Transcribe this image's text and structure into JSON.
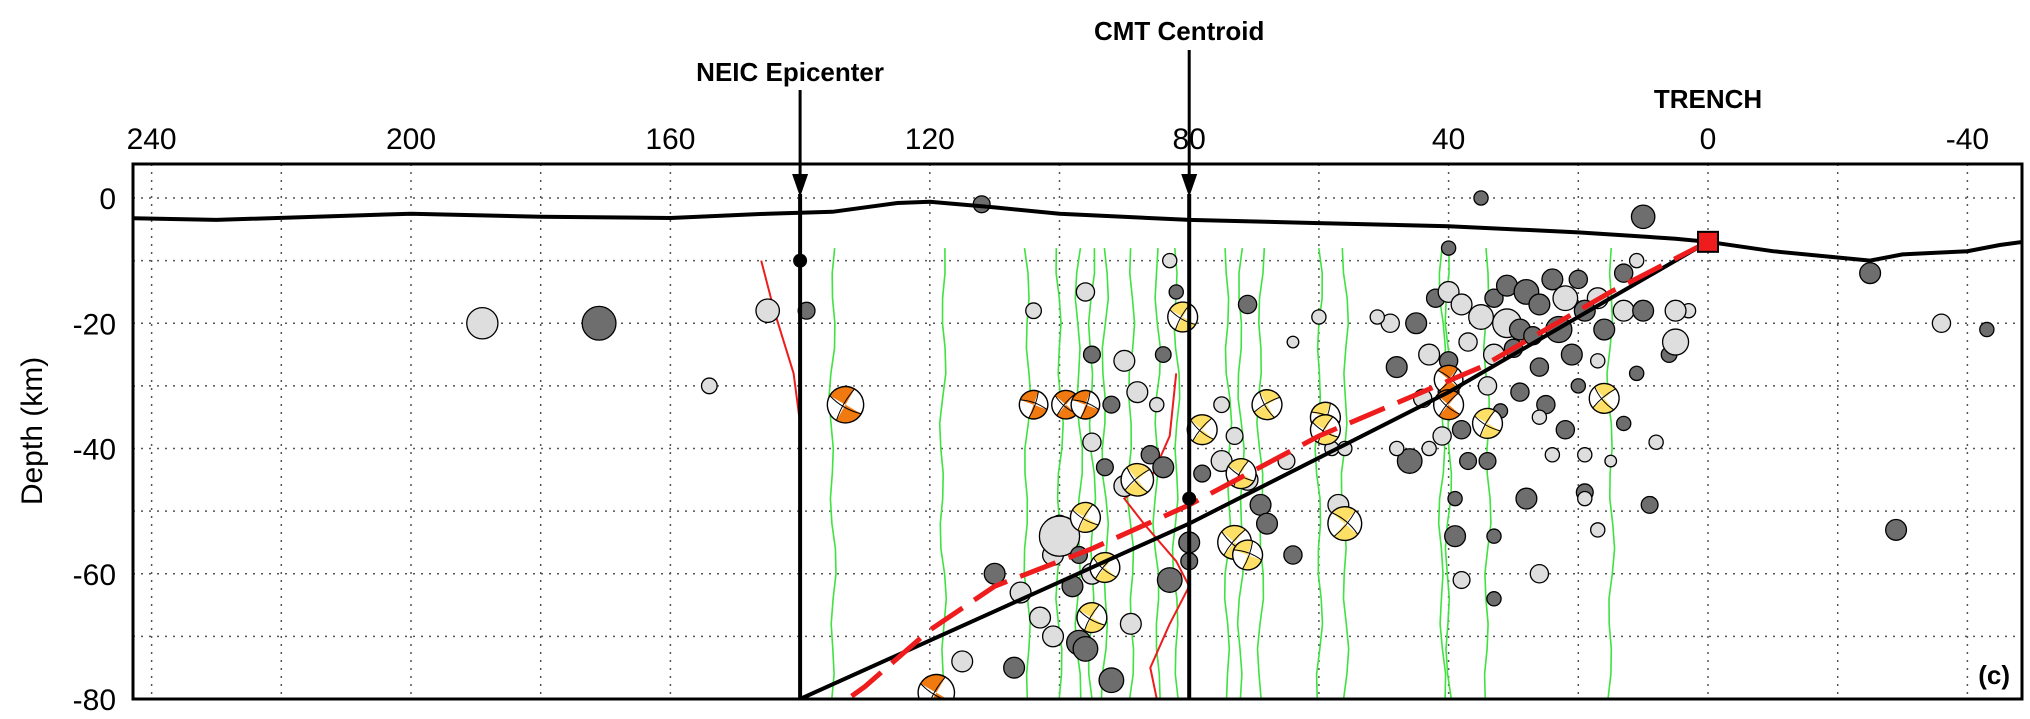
{
  "chart_data": {
    "type": "scatter",
    "panel_label": "(c)",
    "ylabel": "Depth (km)",
    "xlabel": "",
    "xlim": [
      254,
      -50
    ],
    "ylim": [
      -80,
      5
    ],
    "x_ticks": [
      240,
      200,
      160,
      120,
      80,
      40,
      0,
      -40
    ],
    "y_ticks": [
      0,
      -20,
      -40,
      -60,
      -80
    ],
    "grid": true,
    "annotations": {
      "neic": {
        "label": "NEIC Epicenter",
        "x": 140,
        "hypocenter_depth": -10
      },
      "cmt": {
        "label": "CMT Centroid",
        "x": 80,
        "centroid_depth": -48
      },
      "trench": {
        "label": "TRENCH",
        "x": 0,
        "depth": -7
      }
    },
    "topography": [
      [
        254,
        -3
      ],
      [
        230,
        -3.5
      ],
      [
        200,
        -2.5
      ],
      [
        180,
        -3
      ],
      [
        160,
        -3.2
      ],
      [
        145,
        -2.5
      ],
      [
        135,
        -2.2
      ],
      [
        125,
        -0.8
      ],
      [
        120,
        -0.6
      ],
      [
        110,
        -1.5
      ],
      [
        100,
        -2.5
      ],
      [
        80,
        -3.5
      ],
      [
        60,
        -4
      ],
      [
        40,
        -4.5
      ],
      [
        20,
        -5.5
      ],
      [
        5,
        -6.5
      ],
      [
        0,
        -7
      ],
      [
        -10,
        -8.5
      ],
      [
        -20,
        -9.5
      ],
      [
        -25,
        -10
      ],
      [
        -30,
        -9
      ],
      [
        -40,
        -8.5
      ],
      [
        -45,
        -7.5
      ],
      [
        -50,
        -6.8
      ]
    ],
    "slab_interface_red": [
      [
        0,
        -7
      ],
      [
        15,
        -15
      ],
      [
        35,
        -27
      ],
      [
        60,
        -38
      ],
      [
        80,
        -49
      ],
      [
        95,
        -56
      ],
      [
        110,
        -62
      ],
      [
        120,
        -69
      ],
      [
        130,
        -78
      ],
      [
        134,
        -81
      ]
    ],
    "slab_line_black": [
      [
        0,
        -7
      ],
      [
        40,
        -31
      ],
      [
        80,
        -52
      ],
      [
        110,
        -66
      ],
      [
        140,
        -80
      ]
    ],
    "red_profiles": [
      [
        [
          146,
          -10
        ],
        [
          144,
          -18
        ],
        [
          141,
          -28
        ],
        [
          140,
          -36
        ],
        [
          140,
          -42
        ]
      ],
      [
        [
          82,
          -28
        ],
        [
          83,
          -38
        ],
        [
          86,
          -45
        ],
        [
          90,
          -48
        ],
        [
          87,
          -52
        ],
        [
          82,
          -58
        ],
        [
          80,
          -62
        ],
        [
          83,
          -68
        ],
        [
          86,
          -75
        ],
        [
          85,
          -80
        ]
      ]
    ],
    "green_profiles_x": [
      135,
      118,
      105,
      100,
      97,
      95,
      93,
      89,
      85,
      82,
      74,
      72,
      69,
      60,
      56,
      41,
      40,
      34,
      15
    ],
    "events": [
      {
        "x": 112,
        "y": -1,
        "r": 1.3,
        "c": "d"
      },
      {
        "x": 35,
        "y": 0,
        "r": 1.1,
        "c": "d"
      },
      {
        "x": 10,
        "y": -3,
        "r": 1.8,
        "c": "d"
      },
      {
        "x": 189,
        "y": -20,
        "r": 2.4,
        "c": "l"
      },
      {
        "x": 171,
        "y": -20,
        "r": 2.6,
        "c": "d"
      },
      {
        "x": 145,
        "y": -18,
        "r": 1.8,
        "c": "l"
      },
      {
        "x": 139,
        "y": -18,
        "r": 1.3,
        "c": "d"
      },
      {
        "x": 154,
        "y": -30,
        "r": 1.2,
        "c": "l"
      },
      {
        "x": 104,
        "y": -18,
        "r": 1.2,
        "c": "l"
      },
      {
        "x": 96,
        "y": -15,
        "r": 1.4,
        "c": "l"
      },
      {
        "x": 83,
        "y": -10,
        "r": 1.1,
        "c": "l"
      },
      {
        "x": 82,
        "y": -15,
        "r": 1.1,
        "c": "d"
      },
      {
        "x": 71,
        "y": -17,
        "r": 1.4,
        "c": "d"
      },
      {
        "x": 60,
        "y": -19,
        "r": 1.1,
        "c": "l"
      },
      {
        "x": 64,
        "y": -23,
        "r": 0.9,
        "c": "l"
      },
      {
        "x": 95,
        "y": -25,
        "r": 1.3,
        "c": "d"
      },
      {
        "x": 90,
        "y": -26,
        "r": 1.6,
        "c": "l"
      },
      {
        "x": 84,
        "y": -25,
        "r": 1.2,
        "c": "d"
      },
      {
        "x": 92,
        "y": -33,
        "r": 1.3,
        "c": "d"
      },
      {
        "x": 88,
        "y": -31,
        "r": 1.6,
        "c": "l"
      },
      {
        "x": 85,
        "y": -33,
        "r": 1.1,
        "c": "l"
      },
      {
        "x": 75,
        "y": -33,
        "r": 1.2,
        "c": "l"
      },
      {
        "x": 73,
        "y": -38,
        "r": 1.3,
        "c": "l"
      },
      {
        "x": 65,
        "y": -42,
        "r": 1.3,
        "c": "l"
      },
      {
        "x": 95,
        "y": -39,
        "r": 1.4,
        "c": "l"
      },
      {
        "x": 93,
        "y": -43,
        "r": 1.3,
        "c": "d"
      },
      {
        "x": 90,
        "y": -46,
        "r": 1.6,
        "c": "l"
      },
      {
        "x": 86,
        "y": -41,
        "r": 1.4,
        "c": "d"
      },
      {
        "x": 84,
        "y": -43,
        "r": 1.6,
        "c": "d"
      },
      {
        "x": 78,
        "y": -44,
        "r": 1.3,
        "c": "d"
      },
      {
        "x": 75,
        "y": -42,
        "r": 1.6,
        "c": "l"
      },
      {
        "x": 71,
        "y": -45,
        "r": 1.6,
        "c": "l"
      },
      {
        "x": 69,
        "y": -49,
        "r": 1.6,
        "c": "d"
      },
      {
        "x": 68,
        "y": -52,
        "r": 1.6,
        "c": "d"
      },
      {
        "x": 100,
        "y": -52,
        "r": 1.3,
        "c": "l"
      },
      {
        "x": 101,
        "y": -57,
        "r": 1.6,
        "c": "l"
      },
      {
        "x": 100,
        "y": -54,
        "r": 3.1,
        "c": "l"
      },
      {
        "x": 97,
        "y": -57,
        "r": 1.3,
        "c": "d"
      },
      {
        "x": 95,
        "y": -60,
        "r": 1.6,
        "c": "l"
      },
      {
        "x": 98,
        "y": -62,
        "r": 1.6,
        "c": "d"
      },
      {
        "x": 110,
        "y": -60,
        "r": 1.6,
        "c": "d"
      },
      {
        "x": 106,
        "y": -63,
        "r": 1.6,
        "c": "l"
      },
      {
        "x": 103,
        "y": -67,
        "r": 1.6,
        "c": "l"
      },
      {
        "x": 101,
        "y": -70,
        "r": 1.6,
        "c": "l"
      },
      {
        "x": 97,
        "y": -71,
        "r": 1.9,
        "c": "d"
      },
      {
        "x": 96,
        "y": -72,
        "r": 1.9,
        "c": "d"
      },
      {
        "x": 89,
        "y": -68,
        "r": 1.6,
        "c": "l"
      },
      {
        "x": 92,
        "y": -77,
        "r": 1.9,
        "c": "d"
      },
      {
        "x": 107,
        "y": -75,
        "r": 1.6,
        "c": "d"
      },
      {
        "x": 115,
        "y": -74,
        "r": 1.6,
        "c": "l"
      },
      {
        "x": 80,
        "y": -55,
        "r": 1.6,
        "c": "d"
      },
      {
        "x": 80,
        "y": -58,
        "r": 1.3,
        "c": "d"
      },
      {
        "x": 83,
        "y": -61,
        "r": 1.9,
        "c": "d"
      },
      {
        "x": 64,
        "y": -57,
        "r": 1.4,
        "c": "d"
      },
      {
        "x": 58,
        "y": -40,
        "r": 1.1,
        "c": "l"
      },
      {
        "x": 56,
        "y": -40,
        "r": 1.1,
        "c": "l"
      },
      {
        "x": 57,
        "y": -49,
        "r": 1.6,
        "c": "l"
      },
      {
        "x": 40,
        "y": -8,
        "r": 1.1,
        "c": "d"
      },
      {
        "x": 42,
        "y": -16,
        "r": 1.4,
        "c": "d"
      },
      {
        "x": 40,
        "y": -15,
        "r": 1.6,
        "c": "l"
      },
      {
        "x": 38,
        "y": -17,
        "r": 1.6,
        "c": "l"
      },
      {
        "x": 33,
        "y": -16,
        "r": 1.4,
        "c": "d"
      },
      {
        "x": 31,
        "y": -14,
        "r": 1.6,
        "c": "d"
      },
      {
        "x": 28,
        "y": -15,
        "r": 1.9,
        "c": "d"
      },
      {
        "x": 26,
        "y": -17,
        "r": 1.6,
        "c": "d"
      },
      {
        "x": 24,
        "y": -13,
        "r": 1.6,
        "c": "d"
      },
      {
        "x": 22,
        "y": -16,
        "r": 1.9,
        "c": "l"
      },
      {
        "x": 20,
        "y": -13,
        "r": 1.4,
        "c": "d"
      },
      {
        "x": 17,
        "y": -16,
        "r": 1.6,
        "c": "l"
      },
      {
        "x": 13,
        "y": -12,
        "r": 1.4,
        "c": "d"
      },
      {
        "x": 11,
        "y": -10,
        "r": 1.1,
        "c": "l"
      },
      {
        "x": 45,
        "y": -20,
        "r": 1.6,
        "c": "d"
      },
      {
        "x": 49,
        "y": -20,
        "r": 1.4,
        "c": "l"
      },
      {
        "x": 51,
        "y": -19,
        "r": 1.1,
        "c": "l"
      },
      {
        "x": 35,
        "y": -19,
        "r": 1.9,
        "c": "l"
      },
      {
        "x": 31,
        "y": -20,
        "r": 2.2,
        "c": "l"
      },
      {
        "x": 29,
        "y": -21,
        "r": 1.6,
        "c": "d"
      },
      {
        "x": 27,
        "y": -22,
        "r": 1.4,
        "c": "d"
      },
      {
        "x": 23,
        "y": -21,
        "r": 2.0,
        "c": "d"
      },
      {
        "x": 19,
        "y": -18,
        "r": 1.6,
        "c": "d"
      },
      {
        "x": 16,
        "y": -21,
        "r": 1.6,
        "c": "d"
      },
      {
        "x": 13,
        "y": -18,
        "r": 1.6,
        "c": "l"
      },
      {
        "x": 10,
        "y": -18,
        "r": 1.6,
        "c": "d"
      },
      {
        "x": 3,
        "y": -18,
        "r": 1.1,
        "c": "l"
      },
      {
        "x": 6,
        "y": -25,
        "r": 1.2,
        "c": "d"
      },
      {
        "x": 11,
        "y": -28,
        "r": 1.1,
        "c": "d"
      },
      {
        "x": 43,
        "y": -25,
        "r": 1.6,
        "c": "l"
      },
      {
        "x": 40,
        "y": -26,
        "r": 1.4,
        "c": "d"
      },
      {
        "x": 37,
        "y": -23,
        "r": 1.4,
        "c": "l"
      },
      {
        "x": 33,
        "y": -25,
        "r": 1.6,
        "c": "l"
      },
      {
        "x": 30,
        "y": -24,
        "r": 1.4,
        "c": "d"
      },
      {
        "x": 26,
        "y": -27,
        "r": 1.4,
        "c": "d"
      },
      {
        "x": 21,
        "y": -25,
        "r": 1.6,
        "c": "d"
      },
      {
        "x": 17,
        "y": -26,
        "r": 1.1,
        "c": "l"
      },
      {
        "x": 48,
        "y": -27,
        "r": 1.6,
        "c": "d"
      },
      {
        "x": 40,
        "y": -31,
        "r": 1.6,
        "c": "d"
      },
      {
        "x": 34,
        "y": -30,
        "r": 1.4,
        "c": "l"
      },
      {
        "x": 29,
        "y": -31,
        "r": 1.4,
        "c": "d"
      },
      {
        "x": 25,
        "y": -33,
        "r": 1.4,
        "c": "d"
      },
      {
        "x": 20,
        "y": -30,
        "r": 1.1,
        "c": "d"
      },
      {
        "x": 44,
        "y": -32,
        "r": 1.4,
        "c": "l"
      },
      {
        "x": 41,
        "y": -38,
        "r": 1.4,
        "c": "l"
      },
      {
        "x": 38,
        "y": -37,
        "r": 1.4,
        "c": "d"
      },
      {
        "x": 32,
        "y": -34,
        "r": 1.1,
        "c": "d"
      },
      {
        "x": 26,
        "y": -35,
        "r": 1.1,
        "c": "l"
      },
      {
        "x": 22,
        "y": -37,
        "r": 1.4,
        "c": "d"
      },
      {
        "x": 13,
        "y": -36,
        "r": 1.1,
        "c": "d"
      },
      {
        "x": 8,
        "y": -39,
        "r": 1.1,
        "c": "l"
      },
      {
        "x": 46,
        "y": -42,
        "r": 1.9,
        "c": "d"
      },
      {
        "x": 48,
        "y": -40,
        "r": 1.1,
        "c": "l"
      },
      {
        "x": 43,
        "y": -40,
        "r": 1.1,
        "c": "l"
      },
      {
        "x": 37,
        "y": -42,
        "r": 1.3,
        "c": "d"
      },
      {
        "x": 34,
        "y": -42,
        "r": 1.3,
        "c": "d"
      },
      {
        "x": 24,
        "y": -41,
        "r": 1.1,
        "c": "l"
      },
      {
        "x": 19,
        "y": -41,
        "r": 1.1,
        "c": "l"
      },
      {
        "x": 15,
        "y": -42,
        "r": 0.9,
        "c": "l"
      },
      {
        "x": 39,
        "y": -48,
        "r": 1.1,
        "c": "d"
      },
      {
        "x": 28,
        "y": -48,
        "r": 1.6,
        "c": "d"
      },
      {
        "x": 19,
        "y": -47,
        "r": 1.3,
        "c": "d"
      },
      {
        "x": 19,
        "y": -48,
        "r": 1.1,
        "c": "l"
      },
      {
        "x": 9,
        "y": -49,
        "r": 1.3,
        "c": "d"
      },
      {
        "x": 39,
        "y": -54,
        "r": 1.6,
        "c": "d"
      },
      {
        "x": 33,
        "y": -54,
        "r": 1.1,
        "c": "d"
      },
      {
        "x": 17,
        "y": -53,
        "r": 1.1,
        "c": "l"
      },
      {
        "x": 38,
        "y": -61,
        "r": 1.3,
        "c": "l"
      },
      {
        "x": 33,
        "y": -64,
        "r": 1.1,
        "c": "d"
      },
      {
        "x": 26,
        "y": -60,
        "r": 1.4,
        "c": "l"
      },
      {
        "x": 5,
        "y": -18,
        "r": 1.6,
        "c": "l"
      },
      {
        "x": 5,
        "y": -23,
        "r": 2.0,
        "c": "l"
      },
      {
        "x": -25,
        "y": -12,
        "r": 1.6,
        "c": "d"
      },
      {
        "x": -36,
        "y": -20,
        "r": 1.4,
        "c": "l"
      },
      {
        "x": -43,
        "y": -21,
        "r": 1.1,
        "c": "d"
      },
      {
        "x": -29,
        "y": -53,
        "r": 1.6,
        "c": "d"
      }
    ],
    "mechanisms": [
      {
        "x": 133,
        "y": -33,
        "r": 2.8,
        "color": "orange",
        "rot": 30
      },
      {
        "x": 104,
        "y": -33,
        "r": 2.2,
        "color": "orange",
        "rot": 200
      },
      {
        "x": 99,
        "y": -33,
        "r": 2.2,
        "color": "orange",
        "rot": 40
      },
      {
        "x": 96,
        "y": -33,
        "r": 2.2,
        "color": "orange",
        "rot": 200
      },
      {
        "x": 81,
        "y": -19,
        "r": 2.3,
        "color": "yellow",
        "rot": 30
      },
      {
        "x": 78,
        "y": -37,
        "r": 2.3,
        "color": "yellow",
        "rot": 40
      },
      {
        "x": 68,
        "y": -33,
        "r": 2.3,
        "color": "yellow",
        "rot": 60
      },
      {
        "x": 59,
        "y": -35,
        "r": 2.3,
        "color": "yellow",
        "rot": 200
      },
      {
        "x": 59,
        "y": -37,
        "r": 2.3,
        "color": "yellow",
        "rot": 30
      },
      {
        "x": 40,
        "y": -29,
        "r": 2.2,
        "color": "orange",
        "rot": 220
      },
      {
        "x": 40,
        "y": -33,
        "r": 2.3,
        "color": "orange",
        "rot": 40
      },
      {
        "x": 34,
        "y": -36,
        "r": 2.3,
        "color": "yellow",
        "rot": 30
      },
      {
        "x": 16,
        "y": -32,
        "r": 2.3,
        "color": "yellow",
        "rot": 50
      },
      {
        "x": 88,
        "y": -45,
        "r": 2.5,
        "color": "yellow",
        "rot": 50
      },
      {
        "x": 72,
        "y": -44,
        "r": 2.3,
        "color": "yellow",
        "rot": 30
      },
      {
        "x": 96,
        "y": -51,
        "r": 2.3,
        "color": "yellow",
        "rot": 30
      },
      {
        "x": 56,
        "y": -52,
        "r": 2.6,
        "color": "yellow",
        "rot": 220
      },
      {
        "x": 73,
        "y": -55,
        "r": 2.6,
        "color": "yellow",
        "rot": 40
      },
      {
        "x": 71,
        "y": -57,
        "r": 2.3,
        "color": "yellow",
        "rot": 200
      },
      {
        "x": 93,
        "y": -59,
        "r": 2.3,
        "color": "yellow",
        "rot": 40
      },
      {
        "x": 95,
        "y": -67,
        "r": 2.3,
        "color": "yellow",
        "rot": 30
      },
      {
        "x": 119,
        "y": -79,
        "r": 2.8,
        "color": "orange",
        "rot": 30
      }
    ],
    "colors": {
      "orange": "#f07a10",
      "yellow": "#ffe066",
      "dark_event": "#6e6e6e",
      "light_event": "#dedede",
      "slab_red": "#ee1c1c",
      "profile_green": "#3fe23f"
    }
  }
}
